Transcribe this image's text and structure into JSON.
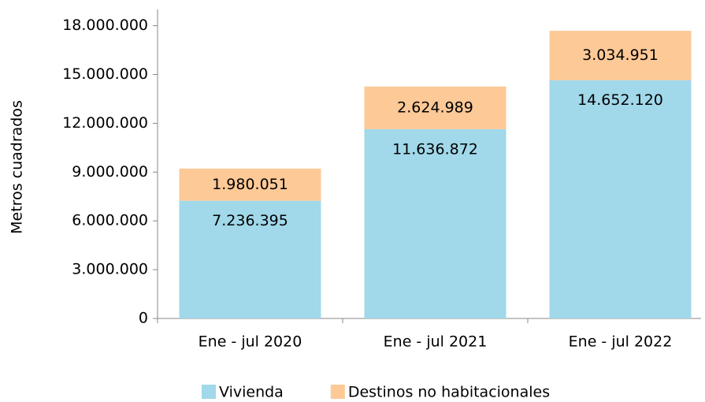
{
  "chart_data": {
    "type": "stacked_bar",
    "y_label": "Metros cuadrados",
    "categories": [
      "Ene - jul 2020",
      "Ene - jul 2021",
      "Ene - jul 2022"
    ],
    "series": [
      {
        "name": "Vivienda",
        "color": "#a1d8ea",
        "values": [
          7236395,
          11636872,
          14652120
        ],
        "value_labels": [
          "7.236.395",
          "11.636.872",
          "14.652.120"
        ]
      },
      {
        "name": "Destinos no habitacionales",
        "color": "#fdc997",
        "values": [
          1980051,
          2624989,
          3034951
        ],
        "value_labels": [
          "1.980.051",
          "2.624.989",
          "3.034.951"
        ]
      }
    ],
    "ylim": [
      0,
      19000000
    ],
    "yticks": [
      0,
      {
        "value": 3000000,
        "label": "3.000.000"
      },
      {
        "value": 6000000,
        "label": "6.000.000"
      },
      {
        "value": 9000000,
        "label": "9.000.000"
      },
      {
        "value": 12000000,
        "label": "12.000.000"
      },
      {
        "value": 15000000,
        "label": "15.000.000"
      },
      {
        "value": 18000000,
        "label": "18.000.000"
      }
    ]
  }
}
